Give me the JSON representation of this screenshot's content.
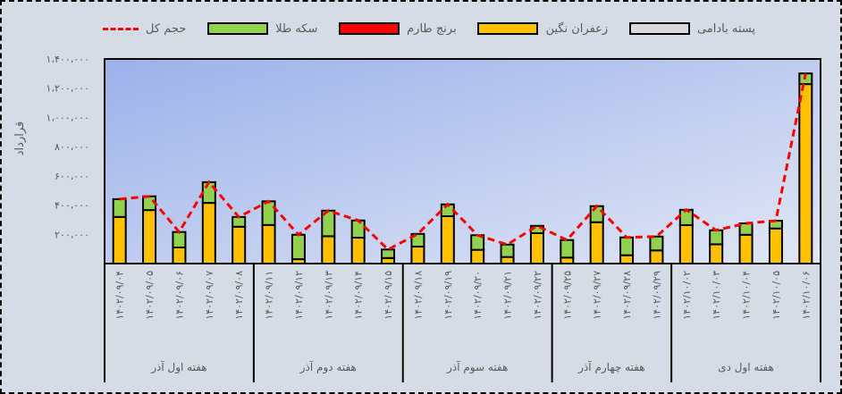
{
  "chart_data": {
    "type": "bar",
    "stacked": true,
    "ylabel": "قرارداد",
    "ylim": [
      0,
      1400000
    ],
    "yticks": [
      "۲۰۰،۰۰۰",
      "۴۰۰،۰۰۰",
      "۶۰۰،۰۰۰",
      "۸۰۰،۰۰۰",
      "۱،۰۰۰،۰۰۰",
      "۱،۲۰۰،۰۰۰",
      "۱،۴۰۰،۰۰۰"
    ],
    "ytick_values": [
      200000,
      400000,
      600000,
      800000,
      1000000,
      1200000,
      1400000
    ],
    "grid": false,
    "legend_position": "top",
    "categories": [
      "۱۴۰۲/۰۹/۰۴",
      "۱۴۰۲/۰۹/۰۵",
      "۱۴۰۲/۰۹/۰۶",
      "۱۴۰۲/۰۹/۰۷",
      "۱۴۰۲/۰۹/۰۸",
      "۱۴۰۲/۰۹/۱۱",
      "۱۴۰۲/۰۹/۱۲",
      "۱۴۰۲/۰۹/۱۳",
      "۱۴۰۲/۰۹/۱۴",
      "۱۴۰۲/۰۹/۱۵",
      "۱۴۰۲/۰۹/۱۸",
      "۱۴۰۲/۰۹/۱۹",
      "۱۴۰۲/۰۹/۲۰",
      "۱۴۰۲/۰۹/۲۱",
      "۱۴۰۲/۰۹/۲۲",
      "۱۴۰۲/۰۹/۲۵",
      "۱۴۰۲/۰۹/۲۷",
      "۱۴۰۲/۰۹/۲۸",
      "۱۴۰۲/۰۹/۲۹",
      "۱۴۰۲/۱۰/۰۲",
      "۱۴۰۲/۱۰/۰۳",
      "۱۴۰۲/۱۰/۰۴",
      "۱۴۰۲/۱۰/۰۵",
      "۱۴۰۲/۱۰/۰۶"
    ],
    "groups": [
      {
        "label": "هفته اول آذر",
        "count": 5
      },
      {
        "label": "هفته دوم آذر",
        "count": 5
      },
      {
        "label": "هفته سوم آذر",
        "count": 5
      },
      {
        "label": "هفته چهارم آذر",
        "count": 4
      },
      {
        "label": "هفته اول دی",
        "count": 5
      }
    ],
    "series": [
      {
        "name": "زعفران نگین",
        "type": "bar",
        "color": "#ffc000",
        "values": [
          319000,
          366000,
          110000,
          415000,
          252000,
          264000,
          30000,
          187000,
          177000,
          38000,
          116000,
          324000,
          94000,
          45000,
          208000,
          41000,
          283000,
          57000,
          90000,
          263000,
          132000,
          197000,
          240000,
          1228000
        ]
      },
      {
        "name": "برنج طارم",
        "type": "bar",
        "color": "#ff0000",
        "values": [
          0,
          0,
          0,
          0,
          0,
          0,
          0,
          0,
          0,
          0,
          0,
          0,
          0,
          0,
          0,
          0,
          0,
          0,
          0,
          0,
          0,
          0,
          0,
          0
        ]
      },
      {
        "name": "پسته بادامی",
        "type": "bar",
        "color": "#d9d9d9",
        "values": [
          0,
          0,
          0,
          0,
          0,
          0,
          0,
          0,
          0,
          0,
          0,
          0,
          0,
          0,
          0,
          0,
          0,
          0,
          0,
          0,
          0,
          0,
          0,
          0
        ]
      },
      {
        "name": "سکه طلا",
        "type": "bar",
        "color": "#92d050",
        "values": [
          122000,
          94000,
          106000,
          142000,
          67000,
          162000,
          167000,
          175000,
          118000,
          58000,
          87000,
          81000,
          100000,
          85000,
          50000,
          120000,
          110000,
          122000,
          95000,
          105000,
          96000,
          78000,
          53000,
          73000
        ]
      },
      {
        "name": "حجم کل",
        "type": "line",
        "color": "#ff0000",
        "values": [
          441000,
          460000,
          216000,
          557000,
          319000,
          426000,
          197000,
          362000,
          295000,
          96000,
          203000,
          405000,
          194000,
          130000,
          258000,
          161000,
          393000,
          179000,
          185000,
          368000,
          228000,
          275000,
          293000,
          1301000
        ]
      }
    ]
  },
  "legend": [
    {
      "label": "پسته بادامی",
      "color": "#d9d9d9",
      "kind": "bar"
    },
    {
      "label": "زعفران نگین",
      "color": "#ffc000",
      "kind": "bar"
    },
    {
      "label": "برنج طارم",
      "color": "#ff0000",
      "kind": "bar"
    },
    {
      "label": "سکه طلا",
      "color": "#92d050",
      "kind": "bar"
    },
    {
      "label": "حجم کل",
      "color": "#ff0000",
      "kind": "line"
    }
  ]
}
